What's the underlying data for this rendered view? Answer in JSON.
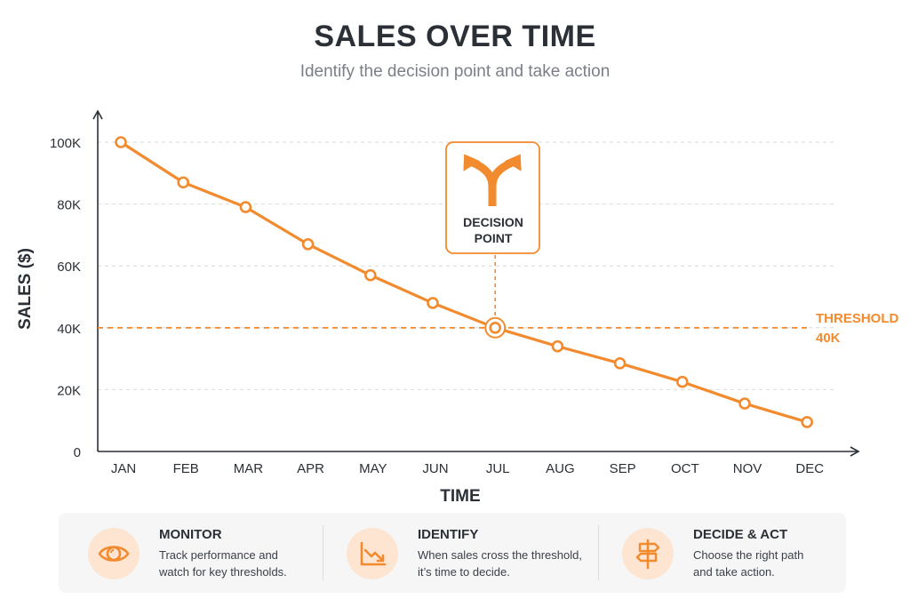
{
  "header": {
    "title": "SALES OVER TIME",
    "subtitle": "Identify the decision point and take action"
  },
  "chart_data": {
    "type": "line",
    "title": "SALES OVER TIME",
    "subtitle": "Identify the decision point and take action",
    "xlabel": "TIME",
    "ylabel": "SALES ($)",
    "categories": [
      "JAN",
      "FEB",
      "MAR",
      "APR",
      "MAY",
      "JUN",
      "JUL",
      "AUG",
      "SEP",
      "OCT",
      "NOV",
      "DEC"
    ],
    "values": [
      100000,
      87000,
      79000,
      67000,
      57000,
      48000,
      40000,
      34000,
      28500,
      22500,
      15500,
      9500
    ],
    "yticks": [
      {
        "value": 0,
        "label": "0"
      },
      {
        "value": 20000,
        "label": "20K"
      },
      {
        "value": 40000,
        "label": "40K"
      },
      {
        "value": 60000,
        "label": "60K"
      },
      {
        "value": 80000,
        "label": "80K"
      },
      {
        "value": 100000,
        "label": "100K"
      }
    ],
    "ylim": [
      0,
      100000
    ],
    "grid": true,
    "line_color": "#f28a2e",
    "threshold": {
      "value": 40000,
      "label_line1": "THRESHOLD",
      "label_line2": "40K"
    },
    "decision_point": {
      "category": "JUL",
      "value": 40000,
      "label_line1": "DECISION",
      "label_line2": "POINT",
      "icon": "split-arrow-icon"
    }
  },
  "cards": [
    {
      "title": "MONITOR",
      "text_line1": "Track performance and",
      "text_line2": "watch for key thresholds.",
      "icon": "eye-icon"
    },
    {
      "title": "IDENTIFY",
      "text_line1": "When sales cross the threshold,",
      "text_line2": "it’s time to decide.",
      "icon": "trend-down-icon"
    },
    {
      "title": "DECIDE & ACT",
      "text_line1": "Choose the right path",
      "text_line2": "and take action.",
      "icon": "signpost-icon"
    }
  ],
  "colors": {
    "accent": "#f28a2e",
    "badge_bg": "#fde5d2",
    "panel_bg": "#f6f6f7",
    "text": "#2b2f36"
  }
}
